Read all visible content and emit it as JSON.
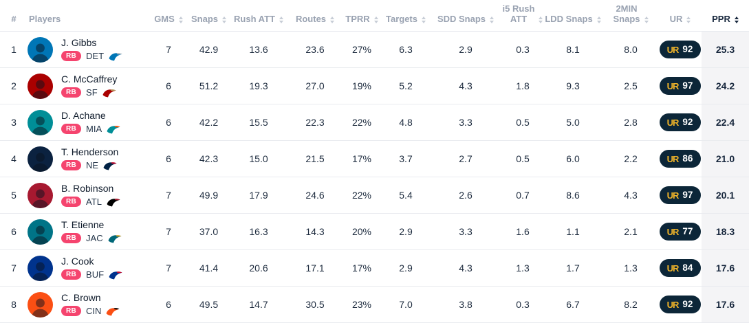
{
  "table": {
    "columns": [
      {
        "key": "rank",
        "label": "#",
        "sortable": false
      },
      {
        "key": "player",
        "label": "Players",
        "sortable": false
      },
      {
        "key": "gms",
        "label": "GMS",
        "sortable": true
      },
      {
        "key": "snaps",
        "label": "Snaps",
        "sortable": true
      },
      {
        "key": "rush_att",
        "label": "Rush ATT",
        "sortable": true
      },
      {
        "key": "routes",
        "label": "Routes",
        "sortable": true
      },
      {
        "key": "tprr",
        "label": "TPRR",
        "sortable": true
      },
      {
        "key": "targets",
        "label": "Targets",
        "sortable": true
      },
      {
        "key": "sdd_snaps",
        "label": "SDD Snaps",
        "sortable": true
      },
      {
        "key": "i5_rush_att",
        "label": "i5 Rush ATT",
        "line1": "i5 Rush",
        "line2": "ATT",
        "sortable": true
      },
      {
        "key": "ldd_snaps",
        "label": "LDD Snaps",
        "sortable": true
      },
      {
        "key": "min2_snaps",
        "label": "2MIN Snaps",
        "line1": "2MIN",
        "line2": "Snaps",
        "sortable": true
      },
      {
        "key": "ur",
        "label": "UR",
        "sortable": true
      },
      {
        "key": "ppr",
        "label": "PPR",
        "sortable": true,
        "sorted": "desc"
      }
    ],
    "rows": [
      {
        "rank": "1",
        "name": "J. Gibbs",
        "position": "RB",
        "team": "DET",
        "avatar_color": "#0076B6",
        "logo_primary": "#0076B6",
        "logo_secondary": "#B0B7BC",
        "gms": "7",
        "snaps": "42.9",
        "rush_att": "13.6",
        "routes": "23.6",
        "tprr": "27%",
        "targets": "6.3",
        "sdd_snaps": "2.9",
        "i5_rush_att": "0.3",
        "ldd_snaps": "8.1",
        "min2_snaps": "8.0",
        "ur": "92",
        "ppr": "25.3"
      },
      {
        "rank": "2",
        "name": "C. McCaffrey",
        "position": "RB",
        "team": "SF",
        "avatar_color": "#AA0000",
        "logo_primary": "#AA0000",
        "logo_secondary": "#B3995D",
        "gms": "6",
        "snaps": "51.2",
        "rush_att": "19.3",
        "routes": "27.0",
        "tprr": "19%",
        "targets": "5.2",
        "sdd_snaps": "4.3",
        "i5_rush_att": "1.8",
        "ldd_snaps": "9.3",
        "min2_snaps": "2.5",
        "ur": "97",
        "ppr": "24.2"
      },
      {
        "rank": "3",
        "name": "D. Achane",
        "position": "RB",
        "team": "MIA",
        "avatar_color": "#008E97",
        "logo_primary": "#008E97",
        "logo_secondary": "#FC4C02",
        "gms": "6",
        "snaps": "42.2",
        "rush_att": "15.5",
        "routes": "22.3",
        "tprr": "22%",
        "targets": "4.8",
        "sdd_snaps": "3.3",
        "i5_rush_att": "0.5",
        "ldd_snaps": "5.0",
        "min2_snaps": "2.8",
        "ur": "92",
        "ppr": "22.4"
      },
      {
        "rank": "4",
        "name": "T. Henderson",
        "position": "RB",
        "team": "NE",
        "avatar_color": "#0b2240",
        "logo_primary": "#002244",
        "logo_secondary": "#C60C30",
        "gms": "6",
        "snaps": "42.3",
        "rush_att": "15.0",
        "routes": "21.5",
        "tprr": "17%",
        "targets": "3.7",
        "sdd_snaps": "2.7",
        "i5_rush_att": "0.5",
        "ldd_snaps": "6.0",
        "min2_snaps": "2.2",
        "ur": "86",
        "ppr": "21.0"
      },
      {
        "rank": "5",
        "name": "B. Robinson",
        "position": "RB",
        "team": "ATL",
        "avatar_color": "#A71930",
        "logo_primary": "#000000",
        "logo_secondary": "#A71930",
        "gms": "7",
        "snaps": "49.9",
        "rush_att": "17.9",
        "routes": "24.6",
        "tprr": "22%",
        "targets": "5.4",
        "sdd_snaps": "2.6",
        "i5_rush_att": "0.7",
        "ldd_snaps": "8.6",
        "min2_snaps": "4.3",
        "ur": "97",
        "ppr": "20.1"
      },
      {
        "rank": "6",
        "name": "T. Etienne",
        "position": "RB",
        "team": "JAC",
        "avatar_color": "#007487",
        "logo_primary": "#006778",
        "logo_secondary": "#D7A22A",
        "gms": "7",
        "snaps": "37.0",
        "rush_att": "16.3",
        "routes": "14.3",
        "tprr": "20%",
        "targets": "2.9",
        "sdd_snaps": "3.3",
        "i5_rush_att": "1.6",
        "ldd_snaps": "1.1",
        "min2_snaps": "2.1",
        "ur": "77",
        "ppr": "18.3"
      },
      {
        "rank": "7",
        "name": "J. Cook",
        "position": "RB",
        "team": "BUF",
        "avatar_color": "#00338D",
        "logo_primary": "#00338D",
        "logo_secondary": "#C60C30",
        "gms": "7",
        "snaps": "41.4",
        "rush_att": "20.6",
        "routes": "17.1",
        "tprr": "17%",
        "targets": "2.9",
        "sdd_snaps": "4.3",
        "i5_rush_att": "1.3",
        "ldd_snaps": "1.7",
        "min2_snaps": "1.3",
        "ur": "84",
        "ppr": "17.6"
      },
      {
        "rank": "8",
        "name": "C. Brown",
        "position": "RB",
        "team": "CIN",
        "avatar_color": "#FB4F14",
        "logo_primary": "#FB4F14",
        "logo_secondary": "#000000",
        "gms": "6",
        "snaps": "49.5",
        "rush_att": "14.7",
        "routes": "30.5",
        "tprr": "23%",
        "targets": "7.0",
        "sdd_snaps": "3.8",
        "i5_rush_att": "0.3",
        "ldd_snaps": "6.7",
        "min2_snaps": "8.2",
        "ur": "92",
        "ppr": "17.6"
      }
    ],
    "ur_badge": {
      "logo_text": "UR",
      "pill_color": "#0c2638",
      "logo_color": "#f0b429"
    }
  }
}
